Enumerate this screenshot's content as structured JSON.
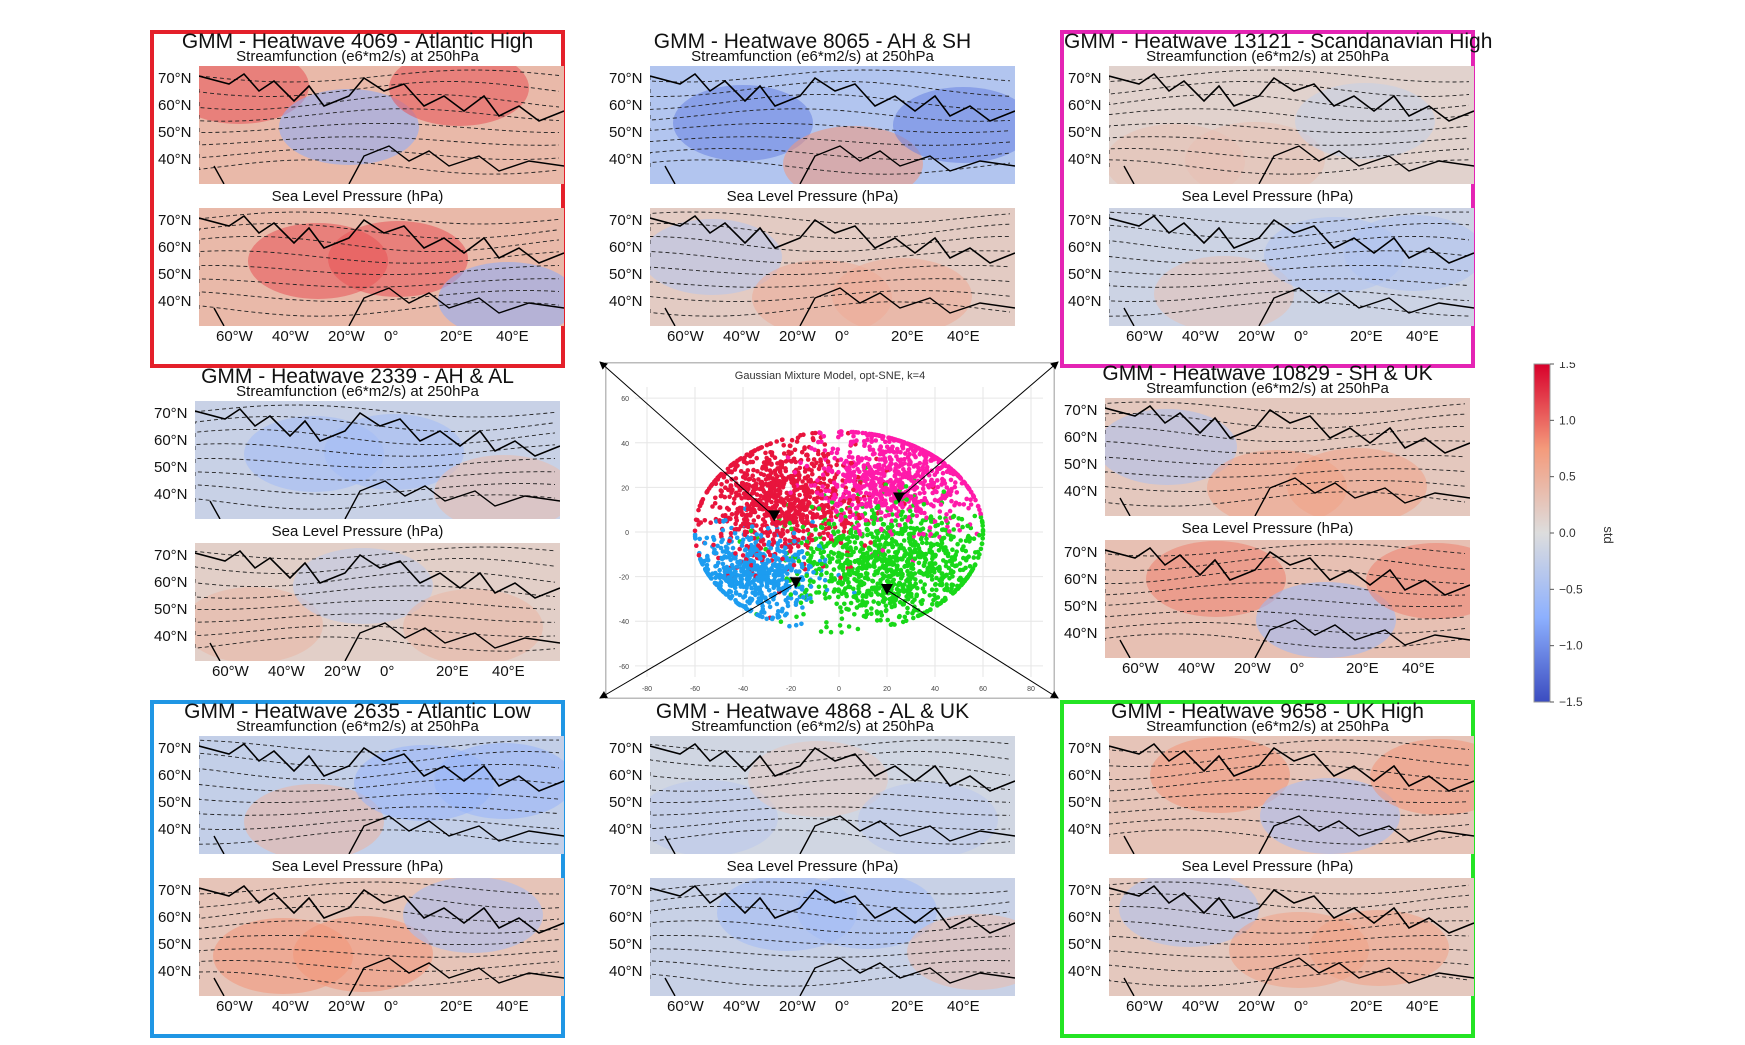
{
  "chart_data": [
    {
      "type": "scatter",
      "title": "Gaussian Mixture Model, opt-SNE, k=4",
      "xticks": [
        "-80",
        "-60",
        "-40",
        "-20",
        "0",
        "20",
        "40",
        "60",
        "80"
      ],
      "yticks": [
        "60",
        "40",
        "20",
        "0",
        "-20",
        "-40",
        "-60"
      ],
      "xlim": [
        -85,
        85
      ],
      "ylim": [
        -65,
        65
      ],
      "grid": true,
      "clusters": [
        {
          "color": "#e8143c",
          "center": [
            -25,
            15
          ],
          "spread": [
            30,
            22
          ],
          "n": 900
        },
        {
          "color": "#ff1aaa",
          "center": [
            25,
            25
          ],
          "spread": [
            32,
            20
          ],
          "n": 800
        },
        {
          "color": "#18d818",
          "center": [
            20,
            -15
          ],
          "spread": [
            35,
            22
          ],
          "n": 1000
        },
        {
          "color": "#1c9cf0",
          "center": [
            -35,
            -18
          ],
          "spread": [
            22,
            16
          ],
          "n": 600
        }
      ],
      "markers": [
        {
          "x": -27,
          "y": 7,
          "target": "top-left"
        },
        {
          "x": 25,
          "y": 15,
          "target": "top-right"
        },
        {
          "x": -18,
          "y": -23,
          "target": "bottom-left"
        },
        {
          "x": 20,
          "y": -26,
          "target": "bottom-right"
        }
      ]
    },
    {
      "type": "colorbar",
      "label": "std",
      "ticks": [
        "1.5",
        "1.0",
        "0.5",
        "0.0",
        "−0.5",
        "−1.0",
        "−1.5"
      ],
      "range": [
        -1.5,
        1.5
      ],
      "colors": [
        "#3b4cc0",
        "#8db0fe",
        "#dddddd",
        "#f49a7b",
        "#d8002b"
      ]
    }
  ],
  "sub_stream": "Streamfunction (e6*m2/s) at 250hPa",
  "sub_slp": "Sea Level Pressure (hPa)",
  "lat_labels": [
    "70°N",
    "60°N",
    "50°N",
    "40°N"
  ],
  "lon_labels": [
    "60°W",
    "40°W",
    "20°W",
    "0°",
    "20°E",
    "40°E"
  ],
  "panels": [
    {
      "title": "GMM - Heatwave 4069 - Atlantic High",
      "frame": "#e4202a",
      "up": 1,
      "down": 1
    },
    {
      "title": "GMM - Heatwave 8065 - AH & SH",
      "frame": "",
      "up": -1,
      "down": 0.5
    },
    {
      "title": "GMM - Heatwave 13121 - Scandanavian High",
      "frame": "#e424b4",
      "up": 0.3,
      "down": -0.4
    },
    {
      "title": "GMM - Heatwave 2339 - AH & AL",
      "frame": "",
      "up": -0.5,
      "down": 0.4
    },
    {
      "title": "GMM - Heatwave 10829 - SH & UK",
      "frame": "",
      "up": 0.6,
      "down": 0.8
    },
    {
      "title": "GMM - Heatwave 2635 - Atlantic Low",
      "frame": "#2096e4",
      "up": -0.6,
      "down": 0.7
    },
    {
      "title": "GMM - Heatwave 4868 - AL & UK",
      "frame": "",
      "up": -0.3,
      "down": -0.5
    },
    {
      "title": "GMM - Heatwave 9658 - UK High",
      "frame": "#24e424",
      "up": 0.7,
      "down": 0.6
    }
  ]
}
